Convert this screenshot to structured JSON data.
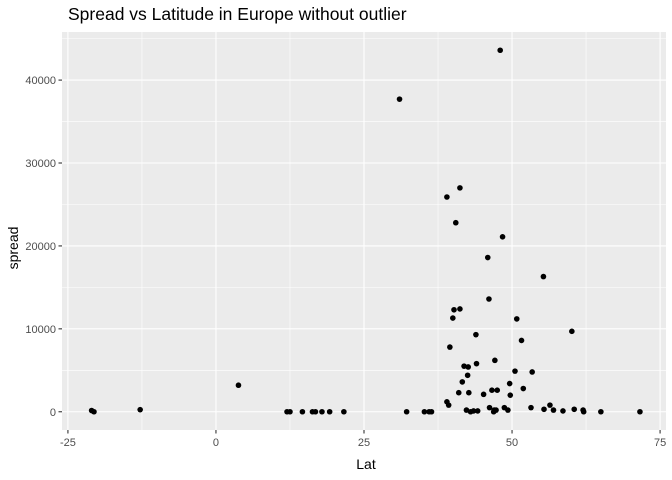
{
  "chart_data": {
    "type": "scatter",
    "title": "Spread vs Latitude in Europe without outlier",
    "xlabel": "Lat",
    "ylabel": "spread",
    "xlim": [
      -26,
      76
    ],
    "ylim": [
      -2200,
      45800
    ],
    "x_ticks": [
      -25,
      0,
      25,
      50,
      75
    ],
    "x_tick_labels": [
      "-25",
      "0",
      "25",
      "50",
      "75"
    ],
    "y_ticks": [
      0,
      10000,
      20000,
      30000,
      40000
    ],
    "y_tick_labels": [
      "0",
      "10000",
      "20000",
      "30000",
      "40000"
    ],
    "grid": true,
    "legend": "none",
    "colors": {
      "panel": "#ebebeb",
      "grid": "#ffffff",
      "point": "#000000",
      "tick": "#4d4d4d",
      "tick_mark": "#333333"
    },
    "points": [
      {
        "x": -21,
        "y": 150
      },
      {
        "x": -20.6,
        "y": 0
      },
      {
        "x": -12.8,
        "y": 250
      },
      {
        "x": 3.8,
        "y": 3200
      },
      {
        "x": 12,
        "y": 0
      },
      {
        "x": 12.5,
        "y": 0
      },
      {
        "x": 14.6,
        "y": 0
      },
      {
        "x": 16.3,
        "y": 0
      },
      {
        "x": 16.8,
        "y": 0
      },
      {
        "x": 17.9,
        "y": 0
      },
      {
        "x": 19.2,
        "y": 0
      },
      {
        "x": 21.6,
        "y": 0
      },
      {
        "x": 31,
        "y": 37700
      },
      {
        "x": 32.2,
        "y": 0
      },
      {
        "x": 35.2,
        "y": 0
      },
      {
        "x": 36,
        "y": 0
      },
      {
        "x": 36.4,
        "y": 0
      },
      {
        "x": 39,
        "y": 25900
      },
      {
        "x": 39,
        "y": 1200
      },
      {
        "x": 39.3,
        "y": 800
      },
      {
        "x": 39.5,
        "y": 7800
      },
      {
        "x": 40,
        "y": 11300
      },
      {
        "x": 40.2,
        "y": 12300
      },
      {
        "x": 40.5,
        "y": 22800
      },
      {
        "x": 41,
        "y": 2300
      },
      {
        "x": 41.2,
        "y": 12400
      },
      {
        "x": 41.2,
        "y": 27000
      },
      {
        "x": 41.6,
        "y": 3600
      },
      {
        "x": 41.9,
        "y": 5500
      },
      {
        "x": 42.3,
        "y": 200
      },
      {
        "x": 42.5,
        "y": 4400
      },
      {
        "x": 42.6,
        "y": 5400
      },
      {
        "x": 42.7,
        "y": 2300
      },
      {
        "x": 43,
        "y": 0
      },
      {
        "x": 43.5,
        "y": 100
      },
      {
        "x": 43.9,
        "y": 9300
      },
      {
        "x": 44,
        "y": 5800
      },
      {
        "x": 44.2,
        "y": 100
      },
      {
        "x": 45.2,
        "y": 2100
      },
      {
        "x": 45.9,
        "y": 18600
      },
      {
        "x": 46.1,
        "y": 13600
      },
      {
        "x": 46.2,
        "y": 500
      },
      {
        "x": 46.6,
        "y": 2600
      },
      {
        "x": 46.9,
        "y": 0
      },
      {
        "x": 47,
        "y": 200
      },
      {
        "x": 47.1,
        "y": 6200
      },
      {
        "x": 47.3,
        "y": 200
      },
      {
        "x": 47.5,
        "y": 2600
      },
      {
        "x": 48,
        "y": 43600
      },
      {
        "x": 48.4,
        "y": 21100
      },
      {
        "x": 48.7,
        "y": 500
      },
      {
        "x": 49.3,
        "y": 200
      },
      {
        "x": 49.6,
        "y": 3400
      },
      {
        "x": 49.7,
        "y": 2000
      },
      {
        "x": 50.5,
        "y": 4900
      },
      {
        "x": 50.8,
        "y": 11200
      },
      {
        "x": 51.6,
        "y": 8600
      },
      {
        "x": 51.9,
        "y": 2800
      },
      {
        "x": 53.2,
        "y": 500
      },
      {
        "x": 53.4,
        "y": 4800
      },
      {
        "x": 55.3,
        "y": 16300
      },
      {
        "x": 55.4,
        "y": 300
      },
      {
        "x": 56.4,
        "y": 800
      },
      {
        "x": 57,
        "y": 200
      },
      {
        "x": 58.6,
        "y": 100
      },
      {
        "x": 60.1,
        "y": 9700
      },
      {
        "x": 60.5,
        "y": 300
      },
      {
        "x": 62,
        "y": 200
      },
      {
        "x": 62.1,
        "y": 0
      },
      {
        "x": 65,
        "y": 0
      },
      {
        "x": 71.6,
        "y": 0
      }
    ]
  }
}
